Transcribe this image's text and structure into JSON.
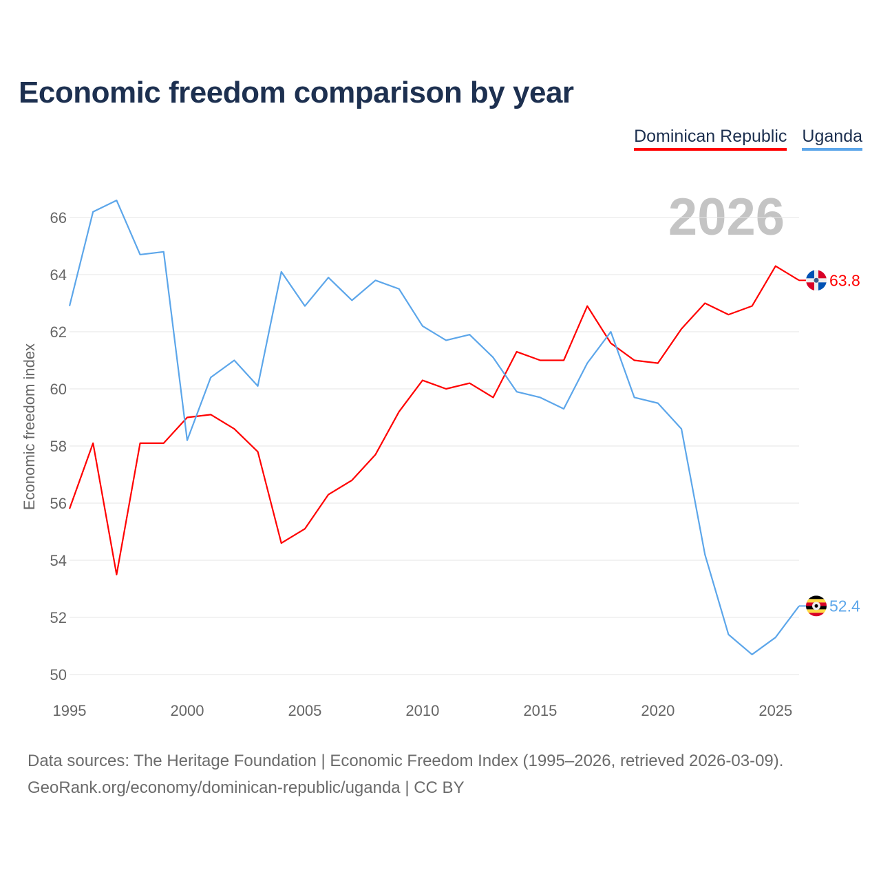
{
  "chart_data": {
    "type": "line",
    "title": "Economic freedom comparison by year",
    "xlabel": "",
    "ylabel": "Economic freedom index",
    "x": [
      1995,
      1996,
      1997,
      1998,
      1999,
      2000,
      2001,
      2002,
      2003,
      2004,
      2005,
      2006,
      2007,
      2008,
      2009,
      2010,
      2011,
      2012,
      2013,
      2014,
      2015,
      2016,
      2017,
      2018,
      2019,
      2020,
      2021,
      2022,
      2023,
      2024,
      2025,
      2026
    ],
    "xlim": [
      1995,
      2026
    ],
    "ylim": [
      50,
      66
    ],
    "xticks": [
      1995,
      2000,
      2005,
      2010,
      2015,
      2020,
      2025
    ],
    "yticks": [
      50,
      52,
      54,
      56,
      58,
      60,
      62,
      64,
      66
    ],
    "grid": true,
    "legend_position": "top-right",
    "year_watermark": "2026",
    "series": [
      {
        "name": "Dominican Republic",
        "color": "#ff0000",
        "end_label": "63.8",
        "values": [
          55.8,
          58.1,
          53.5,
          58.1,
          58.1,
          59.0,
          59.1,
          58.6,
          57.8,
          54.6,
          55.1,
          56.3,
          56.8,
          57.7,
          59.2,
          60.3,
          60.0,
          60.2,
          59.7,
          61.3,
          61.0,
          61.0,
          62.9,
          61.6,
          61.0,
          60.9,
          62.1,
          63.0,
          62.6,
          62.9,
          64.3,
          63.8
        ]
      },
      {
        "name": "Uganda",
        "color": "#5ca6ea",
        "end_label": "52.4",
        "values": [
          62.9,
          66.2,
          66.6,
          64.7,
          64.8,
          58.2,
          60.4,
          61.0,
          60.1,
          64.1,
          62.9,
          63.9,
          63.1,
          63.8,
          63.5,
          62.2,
          61.7,
          61.9,
          61.1,
          59.9,
          59.7,
          59.3,
          60.9,
          62.0,
          59.7,
          59.5,
          58.6,
          54.2,
          51.4,
          50.7,
          51.3,
          52.4
        ]
      }
    ]
  },
  "footer": {
    "line1": "Data sources: The Heritage Foundation | Economic Freedom Index (1995–2026, retrieved 2026-03-09).",
    "line2": "GeoRank.org/economy/dominican-republic/uganda | CC BY"
  }
}
